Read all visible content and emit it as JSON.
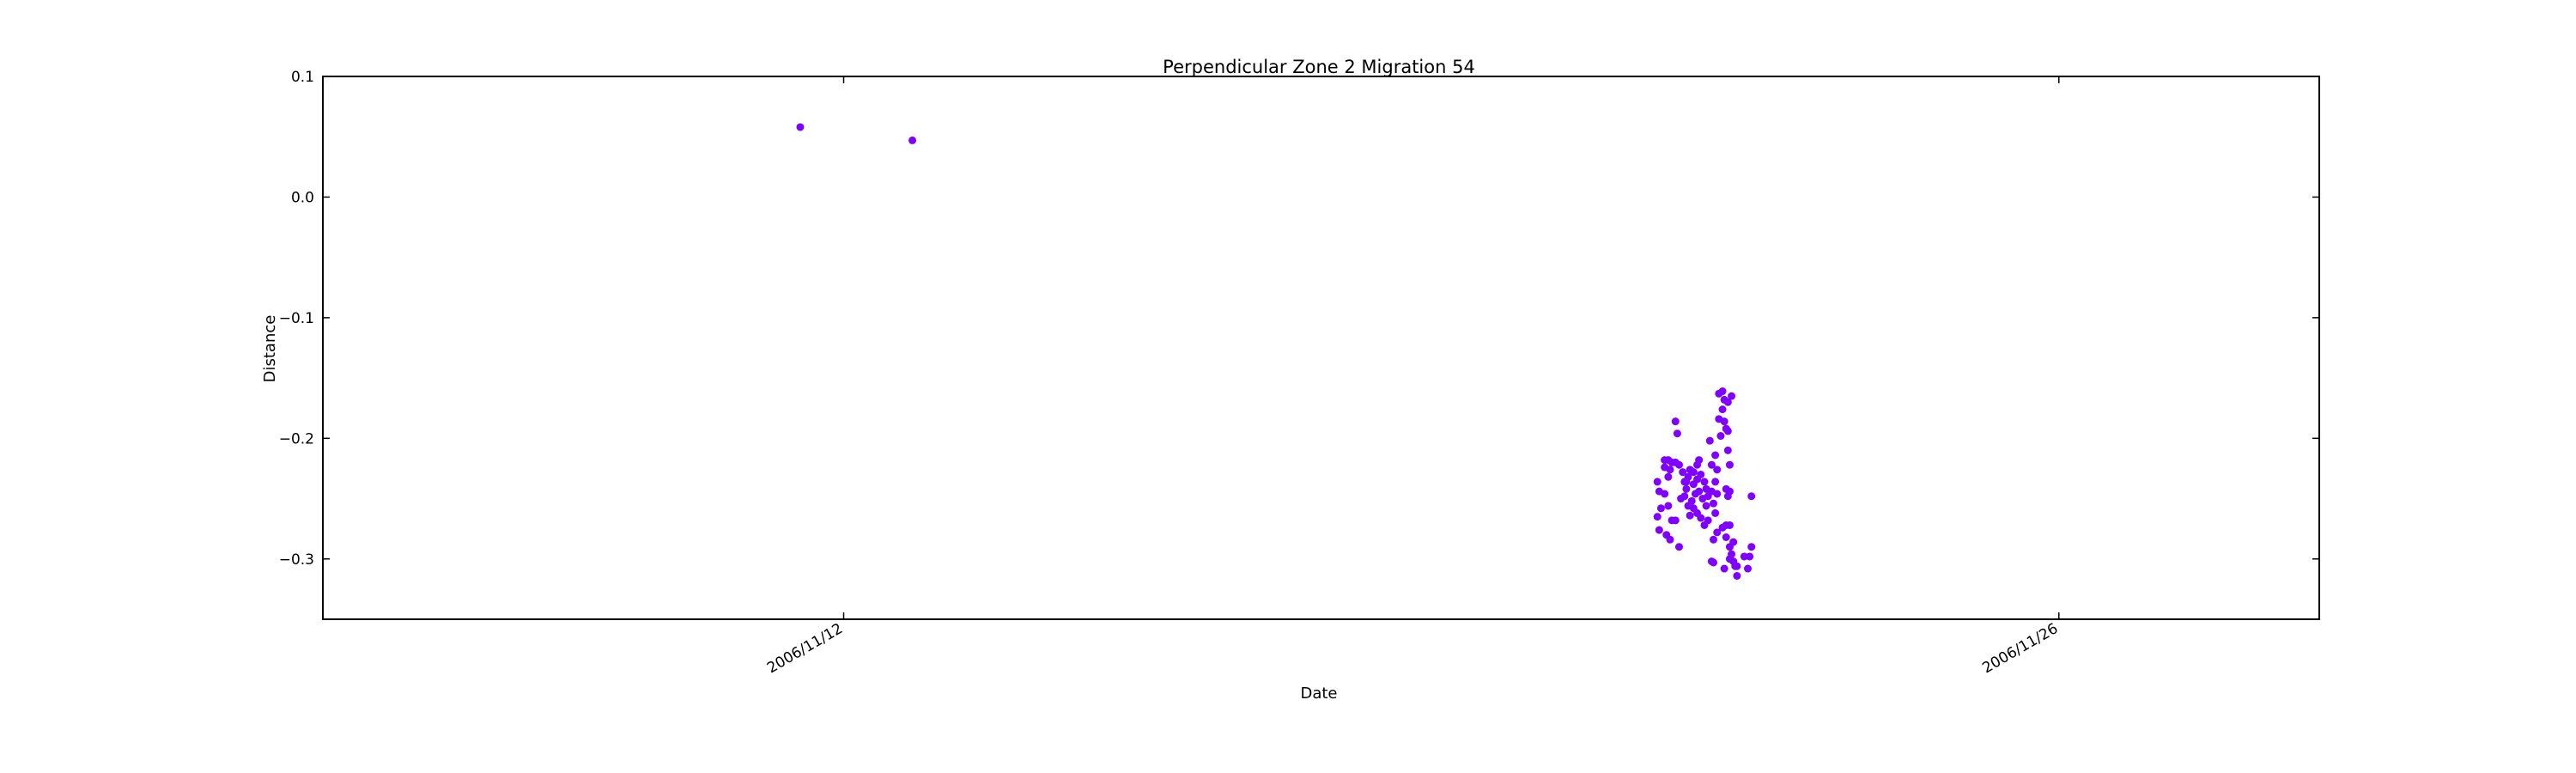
{
  "chart_data": {
    "type": "scatter",
    "title": "Perpendicular Zone 2 Migration 54",
    "xlabel": "Date",
    "ylabel": "Distance",
    "xlim": [
      "2006-11-06",
      "2006-11-29"
    ],
    "ylim": [
      -0.35,
      0.1
    ],
    "yticks": [
      0.1,
      0.0,
      -0.1,
      -0.2,
      -0.3
    ],
    "ytick_labels": [
      "0.1",
      "0.0",
      "−0.1",
      "−0.2",
      "−0.3"
    ],
    "xticks": [
      "2006-11-12",
      "2006-11-26"
    ],
    "xtick_labels": [
      "2006/11/12",
      "2006/11/26"
    ],
    "grid": false,
    "marker_color": "#7f00ff",
    "points": [
      [
        "2006-11-11 12:00",
        0.058
      ],
      [
        "2006-11-12 19:00",
        0.047
      ],
      [
        "2006-11-21 09:00",
        -0.236
      ],
      [
        "2006-11-21 09:30",
        -0.244
      ],
      [
        "2006-11-21 10:00",
        -0.258
      ],
      [
        "2006-11-21 09:00",
        -0.265
      ],
      [
        "2006-11-21 09:30",
        -0.276
      ],
      [
        "2006-11-21 11:00",
        -0.224
      ],
      [
        "2006-11-21 11:00",
        -0.218
      ],
      [
        "2006-11-21 12:00",
        -0.218
      ],
      [
        "2006-11-21 12:00",
        -0.232
      ],
      [
        "2006-11-21 12:30",
        -0.226
      ],
      [
        "2006-11-21 13:00",
        -0.22
      ],
      [
        "2006-11-21 14:00",
        -0.22
      ],
      [
        "2006-11-21 15:00",
        -0.222
      ],
      [
        "2006-11-21 14:00",
        -0.186
      ],
      [
        "2006-11-21 14:30",
        -0.196
      ],
      [
        "2006-11-21 11:00",
        -0.246
      ],
      [
        "2006-11-21 12:00",
        -0.256
      ],
      [
        "2006-11-21 13:00",
        -0.268
      ],
      [
        "2006-11-21 14:00",
        -0.268
      ],
      [
        "2006-11-21 11:30",
        -0.28
      ],
      [
        "2006-11-21 12:30",
        -0.284
      ],
      [
        "2006-11-21 15:00",
        -0.29
      ],
      [
        "2006-11-21 16:00",
        -0.228
      ],
      [
        "2006-11-21 16:30",
        -0.236
      ],
      [
        "2006-11-21 17:00",
        -0.242
      ],
      [
        "2006-11-21 17:30",
        -0.232
      ],
      [
        "2006-11-21 18:00",
        -0.226
      ],
      [
        "2006-11-21 19:00",
        -0.228
      ],
      [
        "2006-11-21 20:00",
        -0.222
      ],
      [
        "2006-11-21 20:30",
        -0.218
      ],
      [
        "2006-11-21 21:00",
        -0.23
      ],
      [
        "2006-11-21 15:30",
        -0.25
      ],
      [
        "2006-11-21 16:30",
        -0.248
      ],
      [
        "2006-11-21 17:30",
        -0.256
      ],
      [
        "2006-11-21 18:30",
        -0.252
      ],
      [
        "2006-11-21 19:30",
        -0.246
      ],
      [
        "2006-11-21 20:30",
        -0.244
      ],
      [
        "2006-11-21 21:30",
        -0.25
      ],
      [
        "2006-11-21 22:30",
        -0.242
      ],
      [
        "2006-11-21 18:00",
        -0.264
      ],
      [
        "2006-11-21 19:00",
        -0.258
      ],
      [
        "2006-11-21 20:00",
        -0.262
      ],
      [
        "2006-11-21 21:00",
        -0.266
      ],
      [
        "2006-11-21 22:00",
        -0.272
      ],
      [
        "2006-11-21 17:00",
        -0.236
      ],
      [
        "2006-11-21 19:00",
        -0.238
      ],
      [
        "2006-11-21 20:00",
        -0.234
      ],
      [
        "2006-11-21 22:00",
        -0.236
      ],
      [
        "2006-11-21 23:00",
        -0.248
      ],
      [
        "2006-11-22 00:00",
        -0.244
      ],
      [
        "2006-11-21 22:30",
        -0.256
      ],
      [
        "2006-11-22 00:30",
        -0.254
      ],
      [
        "2006-11-22 01:00",
        -0.262
      ],
      [
        "2006-11-21 23:30",
        -0.202
      ],
      [
        "2006-11-22 00:00",
        -0.222
      ],
      [
        "2006-11-22 01:00",
        -0.214
      ],
      [
        "2006-11-22 01:30",
        -0.226
      ],
      [
        "2006-11-22 01:00",
        -0.236
      ],
      [
        "2006-11-22 01:30",
        -0.246
      ],
      [
        "2006-11-21 23:00",
        -0.268
      ],
      [
        "2006-11-22 00:30",
        -0.284
      ],
      [
        "2006-11-22 01:30",
        -0.278
      ],
      [
        "2006-11-22 00:00",
        -0.302
      ],
      [
        "2006-11-22 00:30",
        -0.303
      ],
      [
        "2006-11-22 02:00",
        -0.163
      ],
      [
        "2006-11-22 02:00",
        -0.184
      ],
      [
        "2006-11-22 03:00",
        -0.161
      ],
      [
        "2006-11-22 03:30",
        -0.168
      ],
      [
        "2006-11-22 04:30",
        -0.17
      ],
      [
        "2006-11-22 05:30",
        -0.165
      ],
      [
        "2006-11-22 03:00",
        -0.176
      ],
      [
        "2006-11-22 03:30",
        -0.186
      ],
      [
        "2006-11-22 04:00",
        -0.192
      ],
      [
        "2006-11-22 04:30",
        -0.194
      ],
      [
        "2006-11-22 02:30",
        -0.198
      ],
      [
        "2006-11-22 04:30",
        -0.21
      ],
      [
        "2006-11-22 05:00",
        -0.222
      ],
      [
        "2006-11-22 04:00",
        -0.242
      ],
      [
        "2006-11-22 04:30",
        -0.248
      ],
      [
        "2006-11-22 05:00",
        -0.244
      ],
      [
        "2006-11-22 03:00",
        -0.274
      ],
      [
        "2006-11-22 04:00",
        -0.272
      ],
      [
        "2006-11-22 05:00",
        -0.272
      ],
      [
        "2006-11-22 04:00",
        -0.282
      ],
      [
        "2006-11-22 05:00",
        -0.29
      ],
      [
        "2006-11-22 06:00",
        -0.286
      ],
      [
        "2006-11-22 05:00",
        -0.3
      ],
      [
        "2006-11-22 05:30",
        -0.296
      ],
      [
        "2006-11-22 06:00",
        -0.302
      ],
      [
        "2006-11-22 06:30",
        -0.306
      ],
      [
        "2006-11-22 07:00",
        -0.306
      ],
      [
        "2006-11-22 07:00",
        -0.314
      ],
      [
        "2006-11-22 03:30",
        -0.308
      ],
      [
        "2006-11-22 09:00",
        -0.298
      ],
      [
        "2006-11-22 10:00",
        -0.308
      ],
      [
        "2006-11-22 10:30",
        -0.298
      ],
      [
        "2006-11-22 11:00",
        -0.29
      ],
      [
        "2006-11-22 11:00",
        -0.248
      ]
    ]
  }
}
